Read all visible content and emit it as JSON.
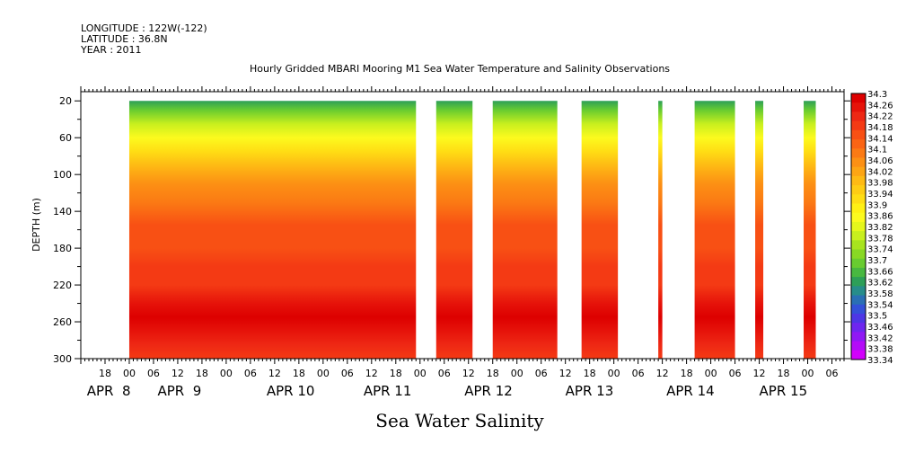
{
  "header": {
    "longitude": "LONGITUDE : 122W(-122)",
    "latitude": "LATITUDE : 36.8N",
    "year": "YEAR : 2011"
  },
  "chart_data": {
    "type": "heatmap",
    "title": "Hourly Gridded MBARI Mooring M1 Sea Water Temperature and Salinity Observations",
    "subtitle": "Sea Water Salinity",
    "xlabel": "",
    "ylabel": "DEPTH (m)",
    "x_unit": "hours since 2011-04-08 00:00",
    "xlim": [
      -12,
      177
    ],
    "ylim": [
      300,
      10
    ],
    "y_inverted": true,
    "y_ticks": [
      20,
      60,
      100,
      140,
      180,
      220,
      260,
      300
    ],
    "hour_ticks": [
      {
        "h": -6,
        "label": "18"
      },
      {
        "h": 0,
        "label": "00"
      },
      {
        "h": 6,
        "label": "06"
      },
      {
        "h": 12,
        "label": "12"
      },
      {
        "h": 18,
        "label": "18"
      },
      {
        "h": 24,
        "label": "00"
      },
      {
        "h": 30,
        "label": "06"
      },
      {
        "h": 36,
        "label": "12"
      },
      {
        "h": 42,
        "label": "18"
      },
      {
        "h": 48,
        "label": "00"
      },
      {
        "h": 54,
        "label": "06"
      },
      {
        "h": 60,
        "label": "12"
      },
      {
        "h": 66,
        "label": "18"
      },
      {
        "h": 72,
        "label": "00"
      },
      {
        "h": 78,
        "label": "06"
      },
      {
        "h": 84,
        "label": "12"
      },
      {
        "h": 90,
        "label": "18"
      },
      {
        "h": 96,
        "label": "00"
      },
      {
        "h": 102,
        "label": "06"
      },
      {
        "h": 108,
        "label": "12"
      },
      {
        "h": 114,
        "label": "18"
      },
      {
        "h": 120,
        "label": "00"
      },
      {
        "h": 126,
        "label": "06"
      },
      {
        "h": 132,
        "label": "12"
      },
      {
        "h": 138,
        "label": "18"
      },
      {
        "h": 144,
        "label": "00"
      },
      {
        "h": 150,
        "label": "06"
      },
      {
        "h": 156,
        "label": "12"
      },
      {
        "h": 162,
        "label": "18"
      },
      {
        "h": 168,
        "label": "00"
      },
      {
        "h": 174,
        "label": "06"
      }
    ],
    "day_labels": [
      {
        "h": -10.5,
        "label": "APR  8"
      },
      {
        "h": 7,
        "label": "APR  9"
      },
      {
        "h": 34,
        "label": "APR 10"
      },
      {
        "h": 58,
        "label": "APR 11"
      },
      {
        "h": 83,
        "label": "APR 12"
      },
      {
        "h": 108,
        "label": "APR 13"
      },
      {
        "h": 133,
        "label": "APR 14"
      },
      {
        "h": 156,
        "label": "APR 15"
      }
    ],
    "data_segments": [
      {
        "start": 0,
        "end": 71
      },
      {
        "start": 76,
        "end": 85
      },
      {
        "start": 90,
        "end": 106
      },
      {
        "start": 112,
        "end": 121
      },
      {
        "start": 131,
        "end": 132
      },
      {
        "start": 140,
        "end": 150
      },
      {
        "start": 155,
        "end": 157
      },
      {
        "start": 167,
        "end": 170
      }
    ],
    "profile": [
      {
        "depth": 20,
        "value": 33.62
      },
      {
        "depth": 30,
        "value": 33.7
      },
      {
        "depth": 45,
        "value": 33.8
      },
      {
        "depth": 60,
        "value": 33.86
      },
      {
        "depth": 75,
        "value": 33.92
      },
      {
        "depth": 90,
        "value": 33.98
      },
      {
        "depth": 110,
        "value": 34.04
      },
      {
        "depth": 130,
        "value": 34.1
      },
      {
        "depth": 155,
        "value": 34.14
      },
      {
        "depth": 180,
        "value": 34.15
      },
      {
        "depth": 200,
        "value": 34.17
      },
      {
        "depth": 220,
        "value": 34.2
      },
      {
        "depth": 240,
        "value": 34.24
      },
      {
        "depth": 255,
        "value": 34.27
      },
      {
        "depth": 270,
        "value": 34.25
      },
      {
        "depth": 285,
        "value": 34.22
      },
      {
        "depth": 300,
        "value": 34.19
      }
    ],
    "colorbar": {
      "min": 33.34,
      "max": 34.3,
      "labels": [
        "34.3",
        "34.26",
        "34.22",
        "34.18",
        "34.14",
        "34.1",
        "34.06",
        "34.02",
        "33.98",
        "33.94",
        "33.9",
        "33.86",
        "33.82",
        "33.78",
        "33.74",
        "33.7",
        "33.66",
        "33.62",
        "33.58",
        "33.54",
        "33.5",
        "33.46",
        "33.42",
        "33.38",
        "33.34"
      ],
      "colors": [
        "#dd0000",
        "#e6130a",
        "#ee2814",
        "#f43a14",
        "#f85014",
        "#fa6414",
        "#fb7a14",
        "#fc9014",
        "#fda514",
        "#feba14",
        "#fecc14",
        "#ffdd14",
        "#fff014",
        "#fcfa1e",
        "#e5f71c",
        "#c8ef1e",
        "#a8e41e",
        "#88d824",
        "#68cc30",
        "#48b840",
        "#2d9f58",
        "#278d8a",
        "#2a6fb4",
        "#3450d8",
        "#4d36e5",
        "#6e26ef",
        "#9018f4",
        "#b40cf8",
        "#d200fc"
      ]
    }
  }
}
